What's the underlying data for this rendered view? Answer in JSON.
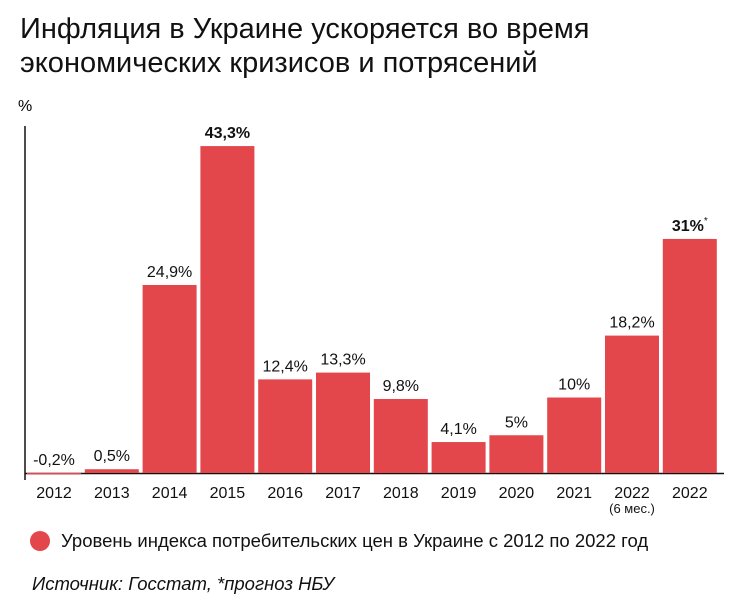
{
  "title_line1": "Инфляция в Украине ускоряется во время",
  "title_line2": "экономических кризисов и потрясений",
  "colors": {
    "bar": "#e3474b",
    "axis": "#111111"
  },
  "chart_data": {
    "type": "bar",
    "ylabel": "%",
    "categories": [
      "2012",
      "2013",
      "2014",
      "2015",
      "2016",
      "2017",
      "2018",
      "2019",
      "2020",
      "2021",
      "2022",
      "2022"
    ],
    "category_sublabels": [
      "",
      "",
      "",
      "",
      "",
      "",
      "",
      "",
      "",
      "",
      "(6 мес.)",
      ""
    ],
    "values": [
      -0.2,
      0.5,
      24.9,
      43.3,
      12.4,
      13.3,
      9.8,
      4.1,
      5,
      10,
      18.2,
      31
    ],
    "data_labels": [
      "-0,2%",
      "0,5%",
      "24,9%",
      "43,3%",
      "12,4%",
      "13,3%",
      "9,8%",
      "4,1%",
      "5%",
      "10%",
      "18,2%",
      "31%"
    ],
    "data_label_bold": [
      false,
      false,
      false,
      true,
      false,
      false,
      false,
      false,
      false,
      false,
      false,
      true
    ],
    "data_label_superscripts": [
      "",
      "",
      "",
      "",
      "",
      "",
      "",
      "",
      "",
      "",
      "",
      "*"
    ],
    "ylim": [
      -0.5,
      46
    ],
    "grid": false,
    "series": [
      {
        "name": "Уровень индекса потребительских цен в Украине с 2012 по 2022 год",
        "values": [
          -0.2,
          0.5,
          24.9,
          43.3,
          12.4,
          13.3,
          9.8,
          4.1,
          5,
          10,
          18.2,
          31
        ]
      }
    ],
    "legend_position": "bottom-left"
  },
  "legend_label": "Уровень индекса потребительских цен в Украине с 2012 по 2022 год",
  "source": "Источник: Госстат, *прогноз НБУ"
}
